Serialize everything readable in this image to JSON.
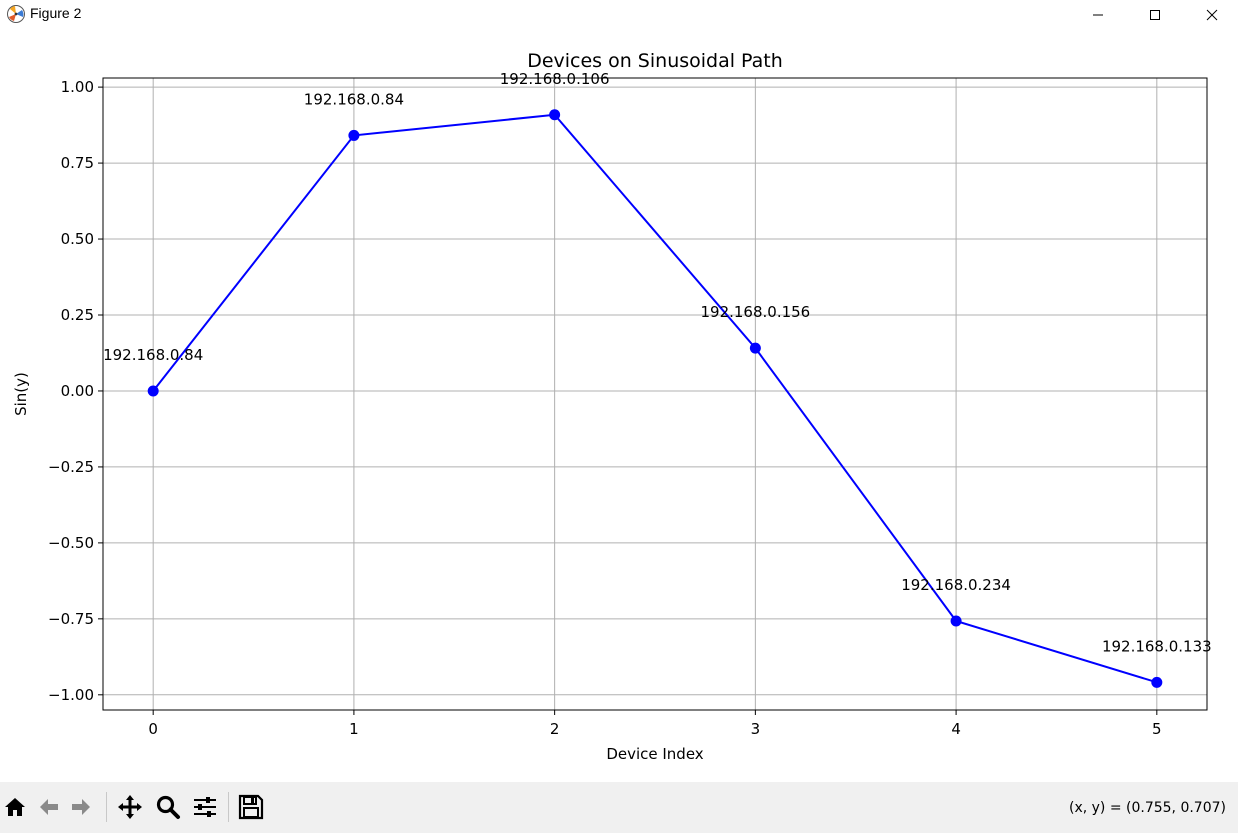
{
  "window": {
    "title": "Figure 2",
    "icons": [
      "app-icon",
      "minimize-icon",
      "maximize-icon",
      "close-icon"
    ]
  },
  "toolbar": {
    "buttons": [
      "home-icon",
      "back-icon",
      "forward-icon",
      "pan-icon",
      "zoom-icon",
      "configure-subplots-icon",
      "save-icon"
    ],
    "coords_text": "(x, y) = (0.755, 0.707)"
  },
  "chart_data": {
    "type": "line",
    "title": "Devices on Sinusoidal Path",
    "xlabel": "Device Index",
    "ylabel": "Sin(y)",
    "x": [
      0,
      1,
      2,
      3,
      4,
      5
    ],
    "y": [
      0.0,
      0.841,
      0.909,
      0.141,
      -0.757,
      -0.959
    ],
    "point_labels": [
      "192.168.0.84",
      "192.168.0.84",
      "192.168.0.106",
      "192.168.0.156",
      "192.168.0.234",
      "192.168.0.133"
    ],
    "xlim": [
      -0.25,
      5.25
    ],
    "ylim": [
      -1.05,
      1.03
    ],
    "xticks": [
      0,
      1,
      2,
      3,
      4,
      5
    ],
    "xtick_labels": [
      "0",
      "1",
      "2",
      "3",
      "4",
      "5"
    ],
    "yticks": [
      1.0,
      0.75,
      0.5,
      0.25,
      0.0,
      -0.25,
      -0.5,
      -0.75,
      -1.0
    ],
    "ytick_labels": [
      "1.00",
      "0.75",
      "0.50",
      "0.25",
      "0.00",
      "−0.25",
      "−0.50",
      "−0.75",
      "−1.00"
    ],
    "grid": true,
    "line_color": "#0000ff",
    "marker": "circle"
  }
}
